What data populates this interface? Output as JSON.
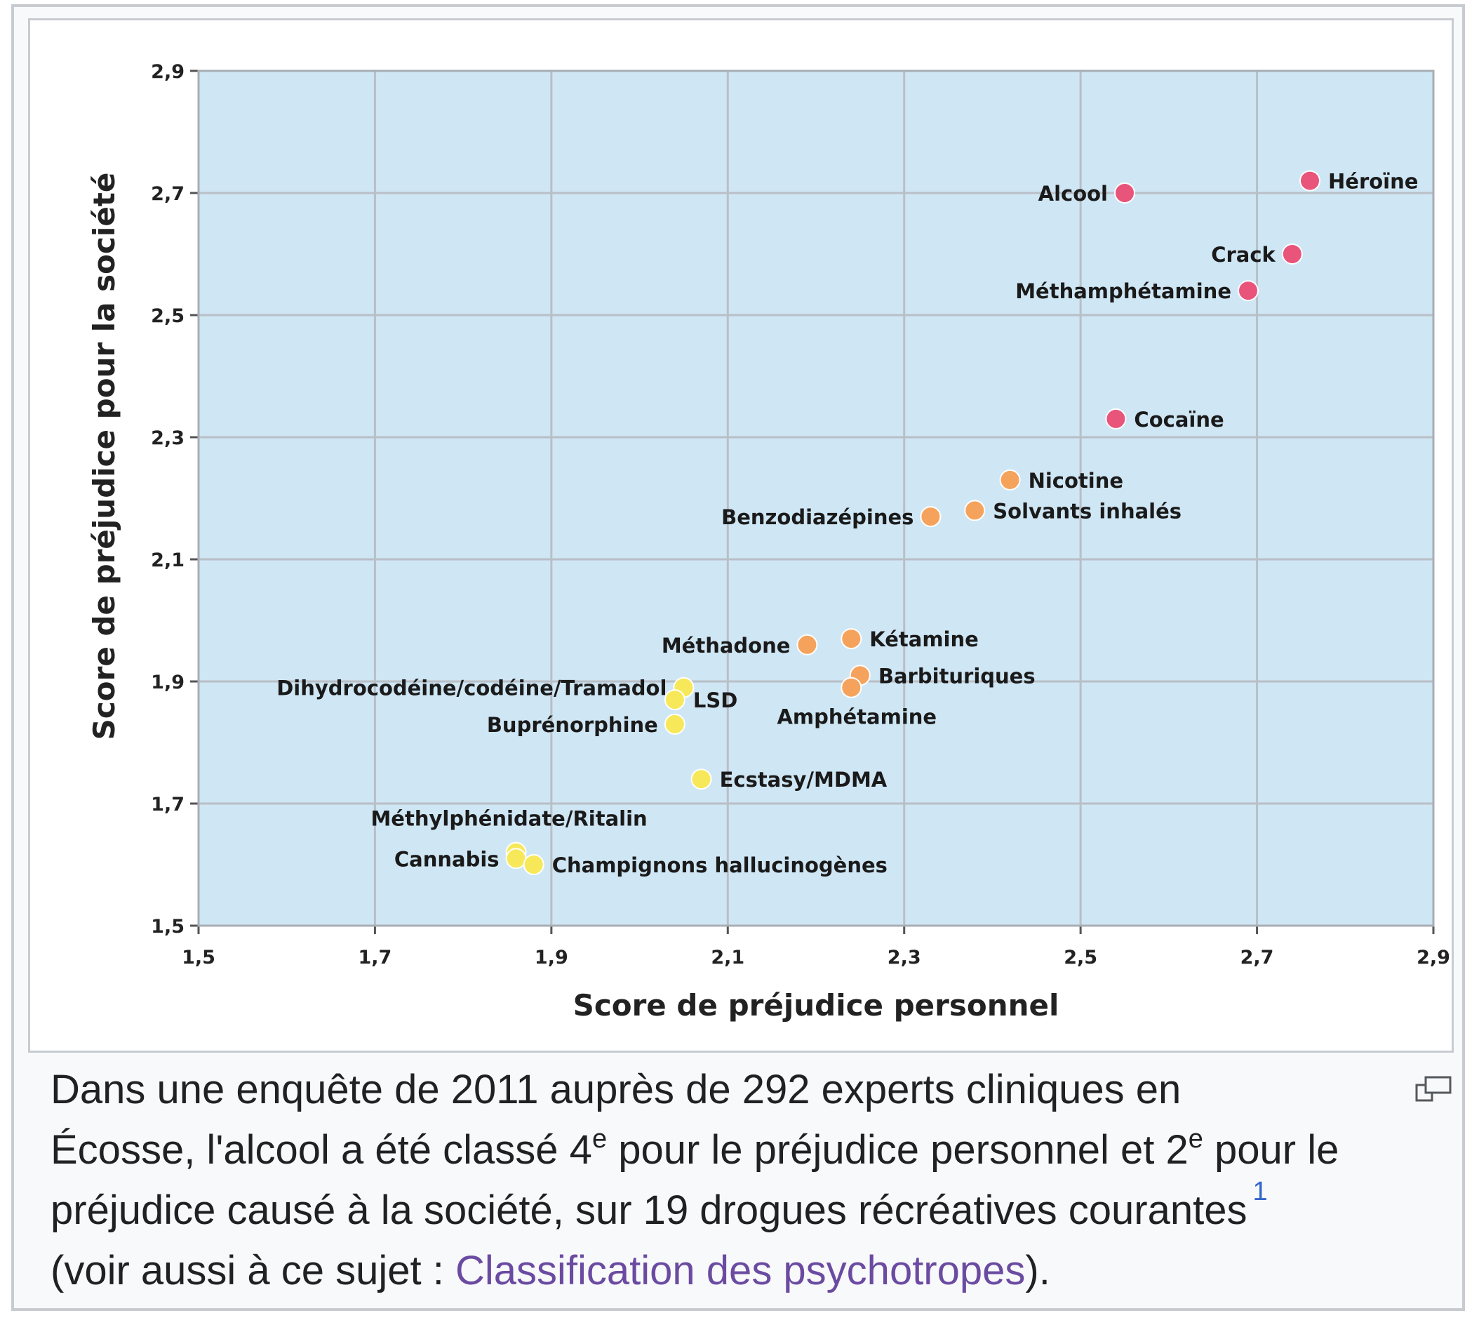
{
  "chart_data": {
    "type": "scatter",
    "title": "",
    "xlabel": "Score de préjudice personnel",
    "ylabel": "Score de préjudice pour la société",
    "xlim": [
      1.5,
      2.9
    ],
    "ylim": [
      1.5,
      2.9
    ],
    "x_ticks": [
      "1,5",
      "1,7",
      "1,9",
      "2,1",
      "2,3",
      "2,5",
      "2,7",
      "2,9"
    ],
    "y_ticks": [
      "1,5",
      "1,7",
      "1,9",
      "2,1",
      "2,3",
      "2,5",
      "2,7",
      "2,9"
    ],
    "grid": true,
    "plot_background": "#cfe6f4",
    "points": [
      {
        "label": "Héroïne",
        "x": 2.76,
        "y": 2.72,
        "color": "#e8547a",
        "label_side": "right"
      },
      {
        "label": "Alcool",
        "x": 2.55,
        "y": 2.7,
        "color": "#e8547a",
        "label_side": "left"
      },
      {
        "label": "Crack",
        "x": 2.74,
        "y": 2.6,
        "color": "#e8547a",
        "label_side": "left"
      },
      {
        "label": "Méthamphétamine",
        "x": 2.69,
        "y": 2.54,
        "color": "#e8547a",
        "label_side": "left"
      },
      {
        "label": "Cocaïne",
        "x": 2.54,
        "y": 2.33,
        "color": "#e8547a",
        "label_side": "right"
      },
      {
        "label": "Nicotine",
        "x": 2.42,
        "y": 2.23,
        "color": "#f5a35c",
        "label_side": "right"
      },
      {
        "label": "Solvants inhalés",
        "x": 2.38,
        "y": 2.18,
        "color": "#f5a35c",
        "label_side": "right"
      },
      {
        "label": "Benzodiazépines",
        "x": 2.33,
        "y": 2.17,
        "color": "#f5a35c",
        "label_side": "left"
      },
      {
        "label": "Kétamine",
        "x": 2.24,
        "y": 1.97,
        "color": "#f5a35c",
        "label_side": "right"
      },
      {
        "label": "Méthadone",
        "x": 2.19,
        "y": 1.96,
        "color": "#f5a35c",
        "label_side": "left"
      },
      {
        "label": "Barbituriques",
        "x": 2.25,
        "y": 1.91,
        "color": "#f5a35c",
        "label_side": "right"
      },
      {
        "label": "Amphétamine",
        "x": 2.24,
        "y": 1.89,
        "color": "#f5a35c",
        "label_side": "below"
      },
      {
        "label": "Dihydrocodéine/codéine/Tramadol",
        "x": 2.05,
        "y": 1.89,
        "color": "#f7e85a",
        "label_side": "left"
      },
      {
        "label": "LSD",
        "x": 2.04,
        "y": 1.87,
        "color": "#f7e85a",
        "label_side": "right"
      },
      {
        "label": "Buprénorphine",
        "x": 2.04,
        "y": 1.83,
        "color": "#f7e85a",
        "label_side": "left"
      },
      {
        "label": "Ecstasy/MDMA",
        "x": 2.07,
        "y": 1.74,
        "color": "#f7e85a",
        "label_side": "right"
      },
      {
        "label": "Méthylphénidate/Ritalin",
        "x": 1.86,
        "y": 1.62,
        "color": "#f7e85a",
        "label_side": "above"
      },
      {
        "label": "Cannabis",
        "x": 1.86,
        "y": 1.61,
        "color": "#f7e85a",
        "label_side": "left"
      },
      {
        "label": "Champignons hallucinogènes",
        "x": 1.88,
        "y": 1.6,
        "color": "#f7e85a",
        "label_side": "right"
      }
    ]
  },
  "caption": {
    "line1": "Dans une enquête de 2011 auprès de 292 experts cliniques en",
    "line2_a": "Écosse, l'alcool a été classé 4",
    "sup1": "e",
    "line2_b": " pour le préjudice personnel et 2",
    "sup2": "e",
    "line2_c": " pour le",
    "line3": "préjudice causé à la société, sur 19 drogues récréatives courantes",
    "ref": "1",
    "line4_a": "(voir aussi à ce sujet : ",
    "link": "Classification des psychotropes",
    "line4_b": ")."
  },
  "icons": {
    "magnify": "magnify-icon"
  }
}
